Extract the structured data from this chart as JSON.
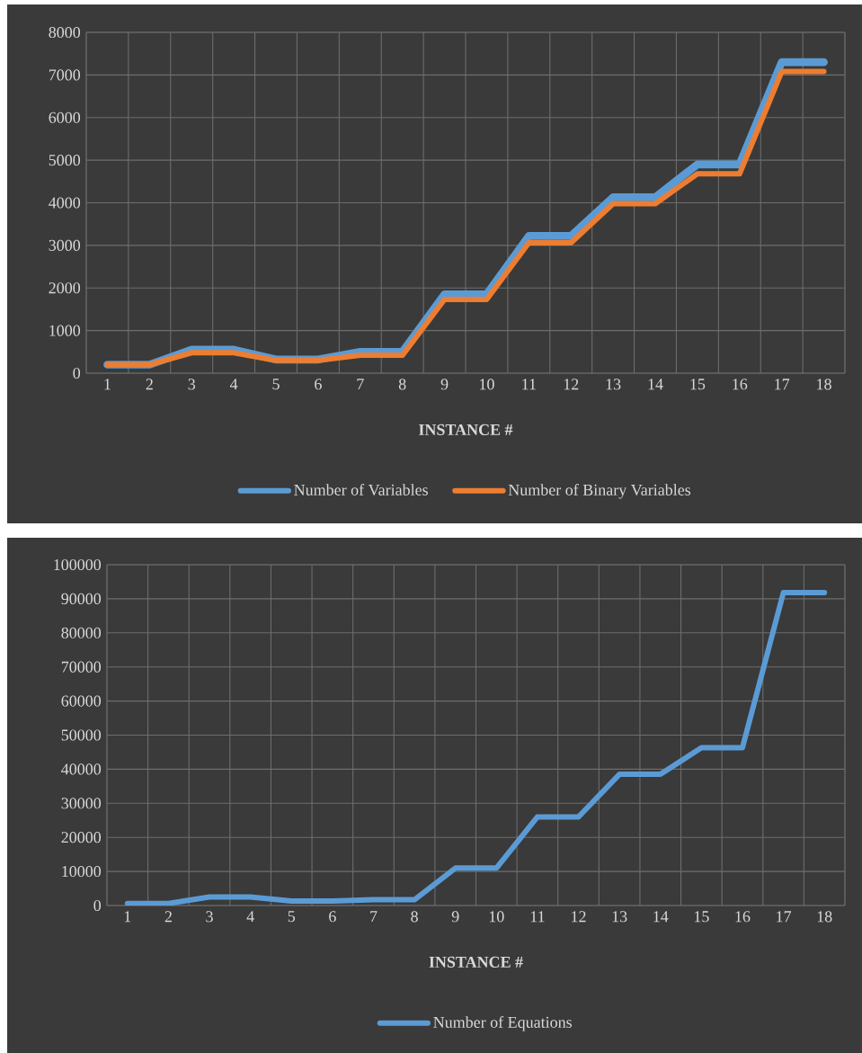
{
  "chart_data": [
    {
      "type": "line",
      "categories": [
        "1",
        "2",
        "3",
        "4",
        "5",
        "6",
        "7",
        "8",
        "9",
        "10",
        "11",
        "12",
        "13",
        "14",
        "15",
        "16",
        "17",
        "18"
      ],
      "xlabel": "**INSTANCE #**",
      "ylim": [
        0,
        8000
      ],
      "yticks": [
        0,
        1000,
        2000,
        3000,
        4000,
        5000,
        6000,
        7000,
        8000
      ],
      "grid": true,
      "legend": "bottom",
      "series": [
        {
          "name": "Number of Variables",
          "color": "#5b9bd5",
          "values": [
            200,
            200,
            550,
            550,
            320,
            320,
            500,
            500,
            1850,
            1850,
            3220,
            3220,
            4130,
            4130,
            4900,
            4900,
            7300,
            7300
          ]
        },
        {
          "name": "Number of Binary Variables",
          "color": "#ed7d31",
          "values": [
            200,
            200,
            480,
            480,
            300,
            300,
            420,
            420,
            1730,
            1730,
            3060,
            3060,
            3980,
            3980,
            4680,
            4680,
            7080,
            7080
          ]
        }
      ]
    },
    {
      "type": "line",
      "categories": [
        "1",
        "2",
        "3",
        "4",
        "5",
        "6",
        "7",
        "8",
        "9",
        "10",
        "11",
        "12",
        "13",
        "14",
        "15",
        "16",
        "17",
        "18"
      ],
      "xlabel": "**INSTANCE #**",
      "ylim": [
        0,
        100000
      ],
      "yticks": [
        0,
        10000,
        20000,
        30000,
        40000,
        50000,
        60000,
        70000,
        80000,
        90000,
        100000
      ],
      "grid": true,
      "legend": "bottom",
      "series": [
        {
          "name": "Number of Equations",
          "color": "#5b9bd5",
          "values": [
            600,
            600,
            2500,
            2500,
            1300,
            1300,
            1700,
            1700,
            11000,
            11000,
            26000,
            26000,
            38500,
            38500,
            46300,
            46300,
            91800,
            91800
          ]
        }
      ]
    }
  ]
}
